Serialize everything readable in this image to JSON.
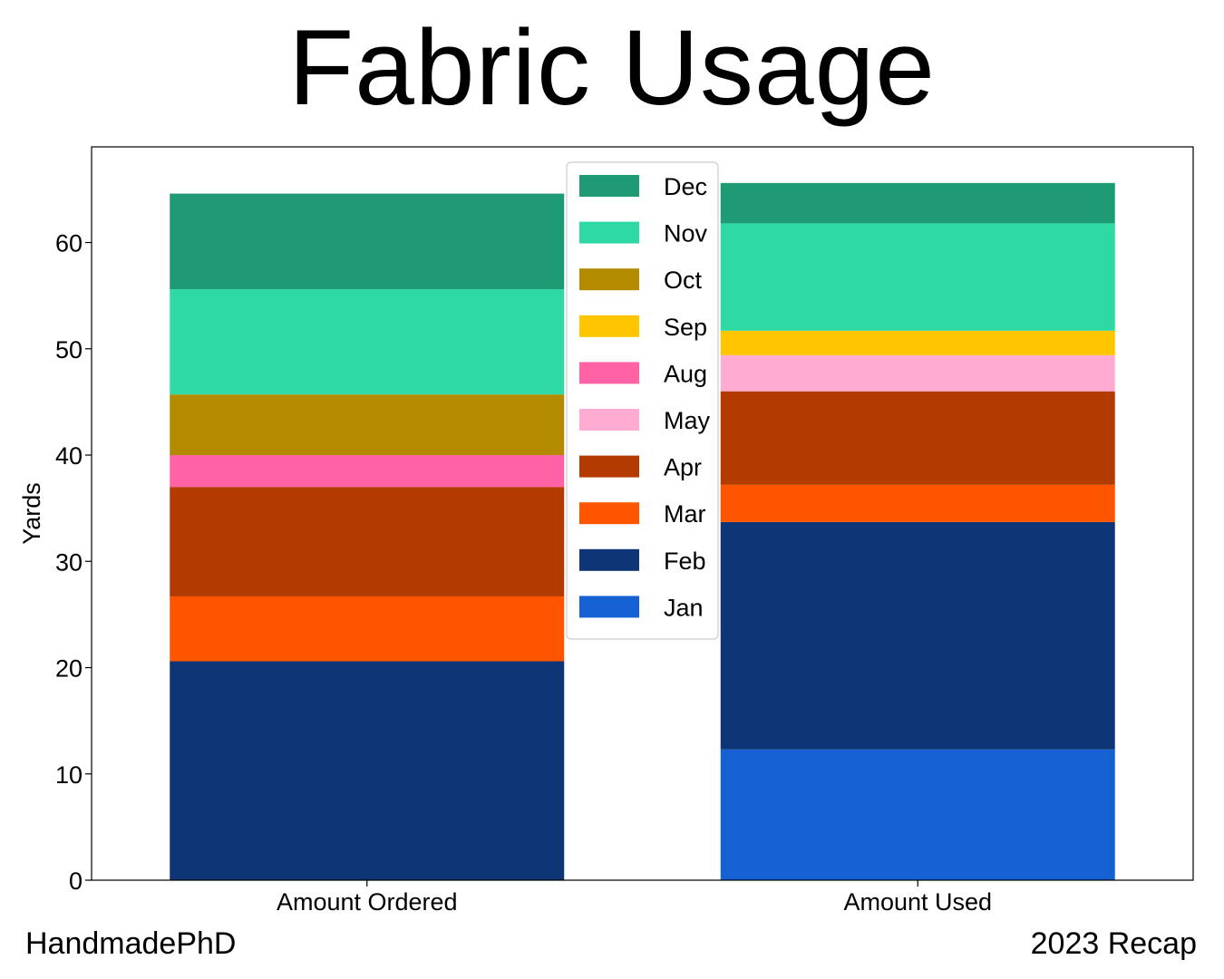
{
  "chart_data": {
    "type": "bar",
    "stacked": true,
    "title": "Fabric Usage",
    "ylabel": "Yards",
    "xlabel": "",
    "ylim": [
      0,
      69
    ],
    "yticks": [
      0,
      10,
      20,
      30,
      40,
      50,
      60
    ],
    "categories": [
      "Amount Ordered",
      "Amount Used"
    ],
    "legend_position": "top-center",
    "series": [
      {
        "name": "Jan",
        "color": "#1560d2",
        "values": [
          0,
          12.3
        ]
      },
      {
        "name": "Feb",
        "color": "#0e3576",
        "values": [
          20.6,
          21.4
        ]
      },
      {
        "name": "Mar",
        "color": "#ff5500",
        "values": [
          6.1,
          3.5
        ]
      },
      {
        "name": "Apr",
        "color": "#b33a00",
        "values": [
          10.3,
          8.8
        ]
      },
      {
        "name": "May",
        "color": "#ffabd2",
        "values": [
          0,
          3.4
        ]
      },
      {
        "name": "Aug",
        "color": "#ff63a5",
        "values": [
          3.0,
          0
        ]
      },
      {
        "name": "Sep",
        "color": "#ffc600",
        "values": [
          0,
          2.3
        ]
      },
      {
        "name": "Oct",
        "color": "#b38b00",
        "values": [
          5.7,
          0
        ]
      },
      {
        "name": "Nov",
        "color": "#2ed9a3",
        "values": [
          9.9,
          10.1
        ]
      },
      {
        "name": "Dec",
        "color": "#1e9a74",
        "values": [
          9.0,
          3.8
        ]
      }
    ]
  },
  "footer": {
    "left": "HandmadePhD",
    "right": "2023 Recap"
  }
}
